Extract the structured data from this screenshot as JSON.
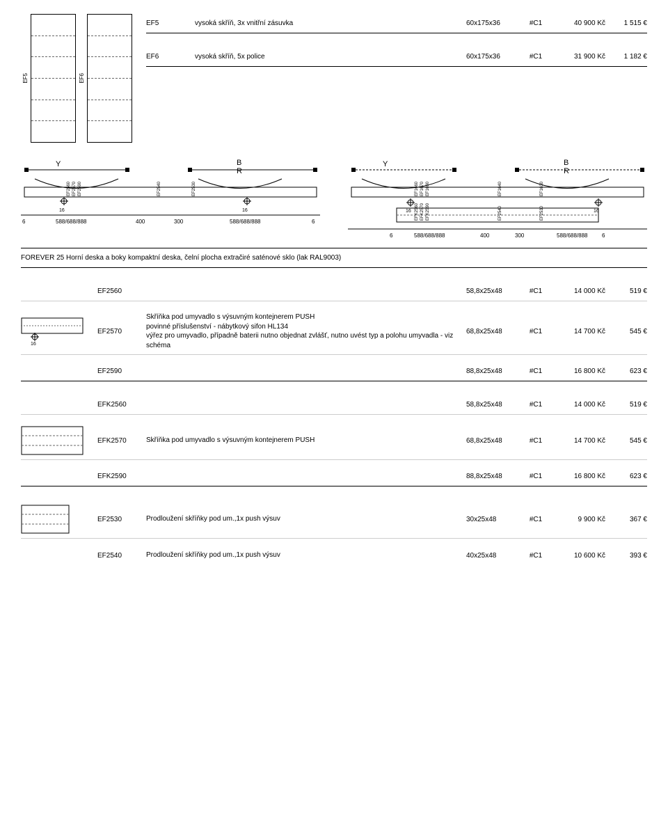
{
  "top_rows": [
    {
      "code": "EF5",
      "desc": "vysoká skříň, 3x vnitřní zásuvka",
      "dim": "60x175x36",
      "grp": "#C1",
      "czk": "40 900 Kč",
      "eur": "1 515 €"
    },
    {
      "code": "EF6",
      "desc": "vysoká skříň, 5x police",
      "dim": "60x175x36",
      "grp": "#C1",
      "czk": "31 900 Kč",
      "eur": "1 182 €"
    }
  ],
  "cab_labels": {
    "ef5": "EF5",
    "ef6": "EF6"
  },
  "schem_left": {
    "y": "Y",
    "b": "B",
    "r": "R",
    "vlabels": [
      "EF2560",
      "EF2570",
      "EF2590",
      "EF2540",
      "EF2530"
    ],
    "dims": [
      "6",
      "588/688/888",
      "400",
      "300",
      "588/688/888",
      "6"
    ],
    "offset16": "16"
  },
  "schem_right": {
    "y": "Y",
    "b": "B",
    "r": "R",
    "vlabels_top": [
      "EF1660",
      "EF1670",
      "EF1690",
      "EF1640",
      "EF1630"
    ],
    "vlabels_bot": [
      "EFK2560",
      "EFK2570",
      "EFK2590",
      "EF2540",
      "EF2530"
    ],
    "dims": [
      "6",
      "588/688/888",
      "400",
      "300",
      "588/688/888",
      "6"
    ],
    "offset16": "16"
  },
  "section_title": "FOREVER 25 Horní deska a boky kompaktní deska, čelní plocha extračiré saténové sklo (lak RAL9003)",
  "rows": [
    {
      "code": "EF2560",
      "desc": "",
      "dim": "58,8x25x48",
      "grp": "#C1",
      "czk": "14 000 Kč",
      "eur": "519 €",
      "icon": null,
      "border": "light"
    },
    {
      "code": "EF2570",
      "desc": "Skříňka pod umyvadlo s výsuvným kontejnerem PUSH\npovinné příslušenství - nábytkový sifon HL134\nvýřez pro umyvadlo, případně baterii nutno objednat zvlášť, nutno uvést typ a polohu umyvadla - viz schéma",
      "dim": "68,8x25x48",
      "grp": "#C1",
      "czk": "14 700 Kč",
      "eur": "545 €",
      "icon": "cab-top",
      "border": "light"
    },
    {
      "code": "EF2590",
      "desc": "",
      "dim": "88,8x25x48",
      "grp": "#C1",
      "czk": "16 800 Kč",
      "eur": "623 €",
      "icon": null,
      "border": "thick"
    },
    {
      "code": "EFK2560",
      "desc": "",
      "dim": "58,8x25x48",
      "grp": "#C1",
      "czk": "14 000 Kč",
      "eur": "519 €",
      "icon": null,
      "border": "light"
    },
    {
      "code": "EFK2570",
      "desc": "Skříňka pod umyvadlo s výsuvným kontejnerem PUSH",
      "dim": "68,8x25x48",
      "grp": "#C1",
      "czk": "14 700 Kč",
      "eur": "545 €",
      "icon": "cab-front",
      "border": "light"
    },
    {
      "code": "EFK2590",
      "desc": "",
      "dim": "88,8x25x48",
      "grp": "#C1",
      "czk": "16 800 Kč",
      "eur": "623 €",
      "icon": null,
      "border": "thick"
    },
    {
      "code": "EF2530",
      "desc": "Prodloužení skříňky pod um.,1x push výsuv",
      "dim": "30x25x48",
      "grp": "#C1",
      "czk": "9 900 Kč",
      "eur": "367 €",
      "icon": "cab-small",
      "border": "light"
    },
    {
      "code": "EF2540",
      "desc": "Prodloužení skříňky pod um.,1x push výsuv",
      "dim": "40x25x48",
      "grp": "#C1",
      "czk": "10 600 Kč",
      "eur": "393 €",
      "icon": null,
      "border": "none"
    }
  ],
  "icons": {
    "offset16": "16"
  }
}
